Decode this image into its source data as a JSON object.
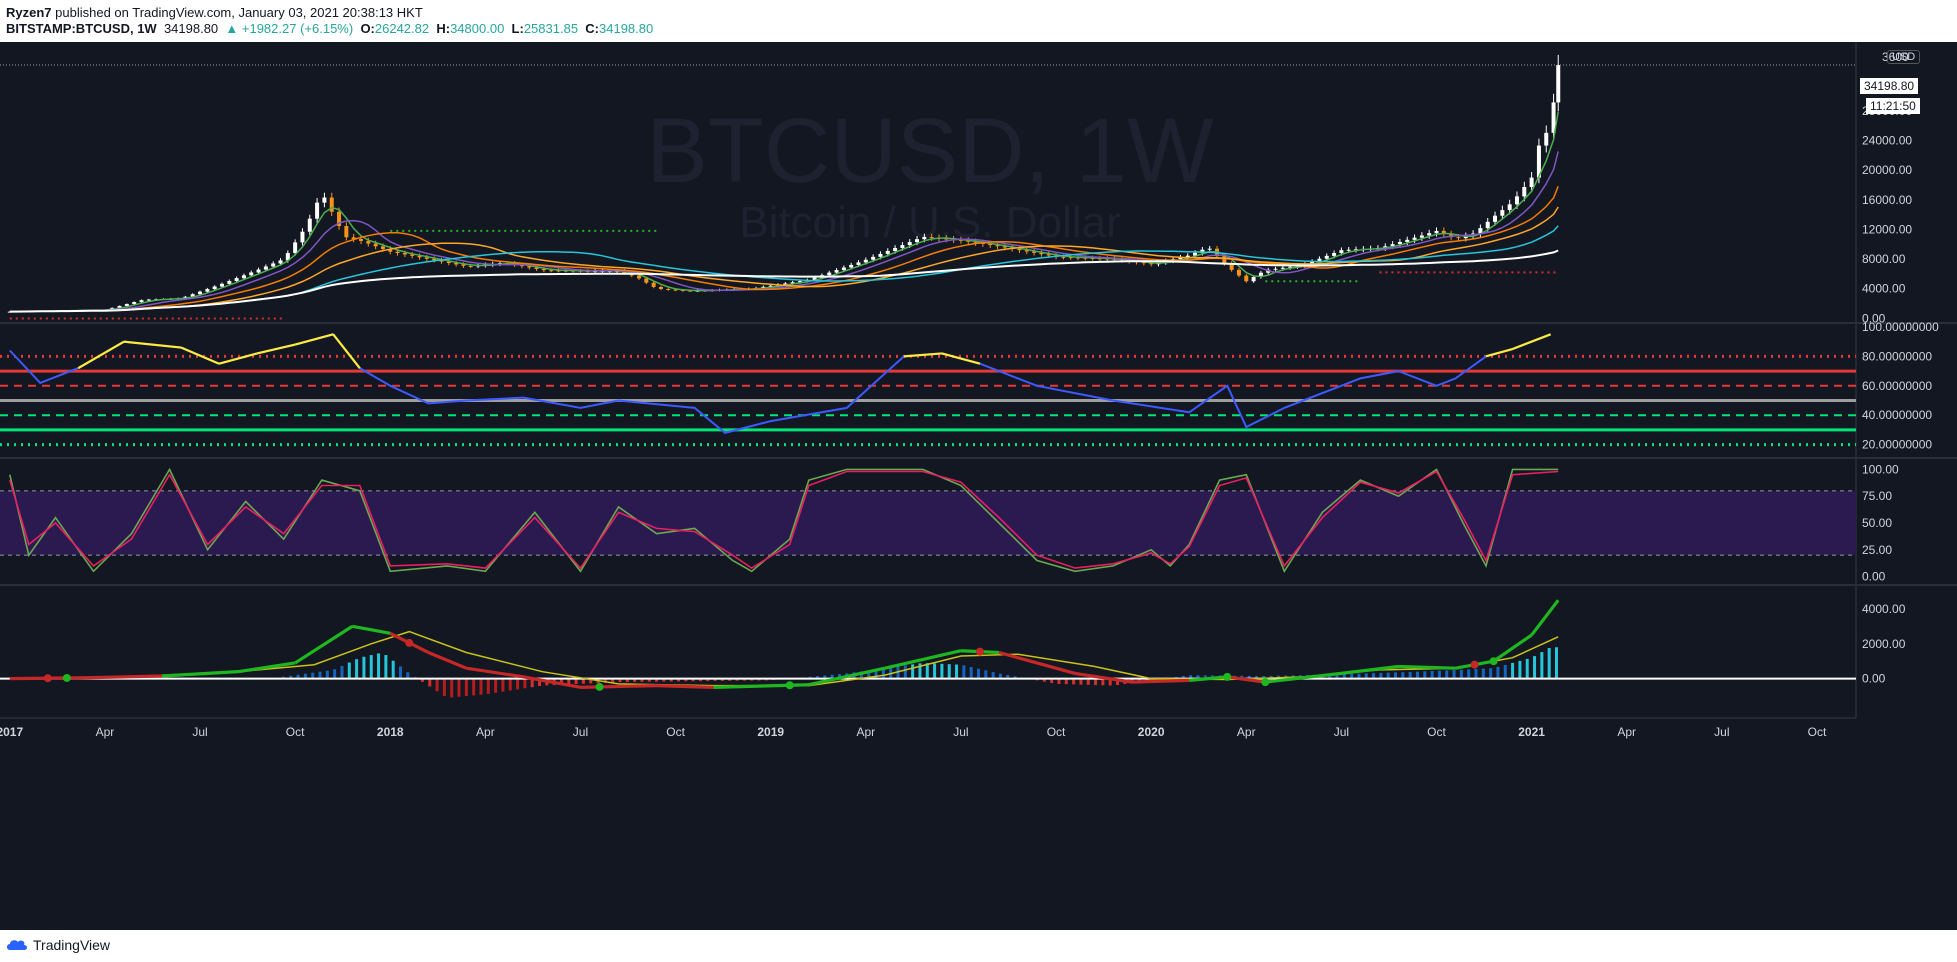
{
  "header": {
    "author": "Ryzen7",
    "published": "published on TradingView.com, January 03, 2021 20:38:13 HKT",
    "symbol": "BITSTAMP:BTCUSD, 1W",
    "last": "34198.80",
    "change": "▲ +1982.27 (+6.15%)",
    "o_label": "O:",
    "o_val": "26242.82",
    "h_label": "H:",
    "h_val": "34800.00",
    "l_label": "L:",
    "l_val": "25831.85",
    "c_label": "C:",
    "c_val": "34198.80"
  },
  "watermark": {
    "title": "BTCUSD, 1W",
    "subtitle": "Bitcoin / U.S. Dollar"
  },
  "price_scale": {
    "currency": "USD",
    "last_price": "34198.80",
    "countdown": "11:21:50"
  },
  "footer": {
    "brand": "TradingView"
  },
  "colors": {
    "background": "#131722",
    "bull": "#ffffff",
    "bear": "#f7931a",
    "rsi": "#3d5afe",
    "rsi_hot": "#ffeb3b",
    "stoch_k": "#6aa84f",
    "stoch_d": "#e91e63",
    "macd": "#1fb71f",
    "signal": "#c9c316"
  },
  "chart_data": [
    {
      "type": "line",
      "title": "BTCUSD, 1W",
      "subtitle": "Bitcoin / U.S. Dollar",
      "x_ticks": [
        "2017",
        "Apr",
        "Jul",
        "Oct",
        "2018",
        "Apr",
        "Jul",
        "Oct",
        "2019",
        "Apr",
        "Jul",
        "Oct",
        "2020",
        "Apr",
        "Jul",
        "Oct",
        "2021",
        "Apr",
        "Jul",
        "Oct"
      ],
      "y_ticks": [
        "0.00",
        "4000.00",
        "8000.00",
        "12000.00",
        "16000.00",
        "20000.00",
        "24000.00",
        "28000.00"
      ],
      "y_top_label": "3600",
      "ylim": [
        -500,
        36500
      ],
      "series": [
        {
          "name": "",
          "style": "close",
          "points": [
            [
              0,
              900
            ],
            [
              0.25,
              1150
            ],
            [
              0.35,
              2500
            ],
            [
              0.45,
              2700
            ],
            [
              0.55,
              4500
            ],
            [
              0.65,
              6500
            ],
            [
              0.72,
              8000
            ],
            [
              0.78,
              12500
            ],
            [
              0.82,
              17000
            ],
            [
              0.85,
              14000
            ],
            [
              0.88,
              11000
            ],
            [
              0.92,
              10500
            ],
            [
              1.0,
              9000
            ],
            [
              1.1,
              8000
            ],
            [
              1.2,
              7000
            ],
            [
              1.3,
              7500
            ],
            [
              1.4,
              6500
            ],
            [
              1.5,
              6400
            ],
            [
              1.6,
              6400
            ],
            [
              1.65,
              5500
            ],
            [
              1.7,
              4000
            ],
            [
              1.78,
              3700
            ],
            [
              1.85,
              3800
            ],
            [
              1.95,
              4000
            ],
            [
              2.1,
              5200
            ],
            [
              2.25,
              7900
            ],
            [
              2.4,
              11000
            ],
            [
              2.5,
              10500
            ],
            [
              2.6,
              9700
            ],
            [
              2.75,
              8300
            ],
            [
              2.9,
              8000
            ],
            [
              3.0,
              7300
            ],
            [
              3.1,
              8500
            ],
            [
              3.15,
              9600
            ],
            [
              3.2,
              7000
            ],
            [
              3.25,
              5000
            ],
            [
              3.3,
              6500
            ],
            [
              3.4,
              7200
            ],
            [
              3.5,
              9200
            ],
            [
              3.6,
              9500
            ],
            [
              3.7,
              11000
            ],
            [
              3.75,
              11800
            ],
            [
              3.8,
              10700
            ],
            [
              3.85,
              11500
            ],
            [
              3.9,
              13700
            ],
            [
              3.95,
              15700
            ],
            [
              4.0,
              19000
            ],
            [
              4.02,
              23500
            ],
            [
              4.05,
              26000
            ],
            [
              4.07,
              34198
            ]
          ]
        }
      ]
    },
    {
      "type": "line",
      "title": "",
      "y_ticks": [
        "20.00000000",
        "40.00000000",
        "60.00000000",
        "80.00000000",
        "100.00000000"
      ],
      "ylim": [
        15,
        102
      ],
      "levels": [
        20,
        30,
        40,
        50,
        60,
        70,
        80
      ],
      "series": [
        {
          "name": "",
          "points": [
            [
              0,
              84
            ],
            [
              0.08,
              62
            ],
            [
              0.18,
              72
            ],
            [
              0.3,
              90
            ],
            [
              0.45,
              86
            ],
            [
              0.55,
              75
            ],
            [
              0.65,
              82
            ],
            [
              0.75,
              88
            ],
            [
              0.85,
              95
            ],
            [
              0.92,
              72
            ],
            [
              1.0,
              60
            ],
            [
              1.1,
              48
            ],
            [
              1.2,
              50
            ],
            [
              1.35,
              52
            ],
            [
              1.5,
              45
            ],
            [
              1.6,
              50
            ],
            [
              1.8,
              45
            ],
            [
              1.88,
              28
            ],
            [
              2.0,
              36
            ],
            [
              2.2,
              45
            ],
            [
              2.35,
              80
            ],
            [
              2.45,
              82
            ],
            [
              2.55,
              75
            ],
            [
              2.7,
              60
            ],
            [
              2.9,
              50
            ],
            [
              3.1,
              42
            ],
            [
              3.2,
              60
            ],
            [
              3.25,
              32
            ],
            [
              3.35,
              45
            ],
            [
              3.45,
              55
            ],
            [
              3.55,
              65
            ],
            [
              3.65,
              70
            ],
            [
              3.75,
              60
            ],
            [
              3.8,
              65
            ],
            [
              3.88,
              80
            ],
            [
              3.95,
              85
            ],
            [
              4.05,
              95
            ]
          ]
        }
      ]
    },
    {
      "type": "line",
      "title": "",
      "y_ticks": [
        "0.00",
        "25.00",
        "50.00",
        "75.00",
        "100.00"
      ],
      "ylim": [
        -5,
        105
      ],
      "band": [
        20,
        80
      ],
      "series": [
        {
          "name": "",
          "points": [
            [
              0,
              95
            ],
            [
              0.05,
              20
            ],
            [
              0.12,
              55
            ],
            [
              0.22,
              5
            ],
            [
              0.32,
              40
            ],
            [
              0.42,
              100
            ],
            [
              0.52,
              25
            ],
            [
              0.62,
              70
            ],
            [
              0.72,
              35
            ],
            [
              0.82,
              90
            ],
            [
              0.92,
              80
            ],
            [
              1.0,
              5
            ],
            [
              1.15,
              10
            ],
            [
              1.25,
              5
            ],
            [
              1.38,
              60
            ],
            [
              1.5,
              5
            ],
            [
              1.6,
              65
            ],
            [
              1.7,
              40
            ],
            [
              1.8,
              45
            ],
            [
              1.9,
              15
            ],
            [
              1.95,
              5
            ],
            [
              2.05,
              35
            ],
            [
              2.1,
              90
            ],
            [
              2.2,
              100
            ],
            [
              2.4,
              100
            ],
            [
              2.5,
              85
            ],
            [
              2.6,
              50
            ],
            [
              2.7,
              15
            ],
            [
              2.8,
              5
            ],
            [
              2.9,
              10
            ],
            [
              3.0,
              25
            ],
            [
              3.05,
              10
            ],
            [
              3.1,
              30
            ],
            [
              3.18,
              90
            ],
            [
              3.25,
              95
            ],
            [
              3.35,
              5
            ],
            [
              3.45,
              60
            ],
            [
              3.55,
              90
            ],
            [
              3.65,
              75
            ],
            [
              3.75,
              100
            ],
            [
              3.82,
              50
            ],
            [
              3.88,
              10
            ],
            [
              3.95,
              100
            ],
            [
              4.07,
              100
            ]
          ]
        },
        {
          "name": "",
          "points": [
            [
              0,
              90
            ],
            [
              0.05,
              30
            ],
            [
              0.12,
              50
            ],
            [
              0.22,
              10
            ],
            [
              0.32,
              35
            ],
            [
              0.42,
              95
            ],
            [
              0.52,
              30
            ],
            [
              0.62,
              65
            ],
            [
              0.72,
              40
            ],
            [
              0.82,
              85
            ],
            [
              0.92,
              85
            ],
            [
              1.0,
              10
            ],
            [
              1.15,
              12
            ],
            [
              1.25,
              8
            ],
            [
              1.38,
              55
            ],
            [
              1.5,
              8
            ],
            [
              1.6,
              60
            ],
            [
              1.7,
              45
            ],
            [
              1.8,
              42
            ],
            [
              1.9,
              20
            ],
            [
              1.95,
              8
            ],
            [
              2.05,
              30
            ],
            [
              2.1,
              85
            ],
            [
              2.2,
              98
            ],
            [
              2.4,
              98
            ],
            [
              2.5,
              88
            ],
            [
              2.6,
              55
            ],
            [
              2.7,
              20
            ],
            [
              2.8,
              8
            ],
            [
              2.9,
              12
            ],
            [
              3.0,
              22
            ],
            [
              3.05,
              12
            ],
            [
              3.1,
              28
            ],
            [
              3.18,
              85
            ],
            [
              3.25,
              92
            ],
            [
              3.35,
              10
            ],
            [
              3.45,
              55
            ],
            [
              3.55,
              88
            ],
            [
              3.65,
              78
            ],
            [
              3.75,
              98
            ],
            [
              3.82,
              55
            ],
            [
              3.88,
              15
            ],
            [
              3.95,
              95
            ],
            [
              4.07,
              98
            ]
          ]
        }
      ]
    },
    {
      "type": "line",
      "title": "",
      "y_ticks": [
        "0.00",
        "2000.00",
        "4000.00"
      ],
      "ylim": [
        -1800,
        5200
      ],
      "series": [
        {
          "name": "",
          "points": [
            [
              0,
              0
            ],
            [
              0.2,
              50
            ],
            [
              0.4,
              150
            ],
            [
              0.6,
              400
            ],
            [
              0.75,
              900
            ],
            [
              0.9,
              3000
            ],
            [
              1.0,
              2600
            ],
            [
              1.1,
              1500
            ],
            [
              1.2,
              600
            ],
            [
              1.35,
              100
            ],
            [
              1.5,
              -500
            ],
            [
              1.7,
              -400
            ],
            [
              1.85,
              -500
            ],
            [
              2.1,
              -350
            ],
            [
              2.3,
              600
            ],
            [
              2.5,
              1600
            ],
            [
              2.6,
              1500
            ],
            [
              2.8,
              300
            ],
            [
              2.95,
              -200
            ],
            [
              3.1,
              -100
            ],
            [
              3.2,
              100
            ],
            [
              3.3,
              -200
            ],
            [
              3.5,
              300
            ],
            [
              3.65,
              700
            ],
            [
              3.8,
              600
            ],
            [
              3.9,
              1000
            ],
            [
              4.0,
              2500
            ],
            [
              4.07,
              4500
            ]
          ]
        },
        {
          "name": "",
          "points": [
            [
              0,
              0
            ],
            [
              0.3,
              100
            ],
            [
              0.6,
              400
            ],
            [
              0.8,
              800
            ],
            [
              0.95,
              2000
            ],
            [
              1.05,
              2700
            ],
            [
              1.2,
              1500
            ],
            [
              1.4,
              400
            ],
            [
              1.6,
              -300
            ],
            [
              1.85,
              -400
            ],
            [
              2.1,
              -400
            ],
            [
              2.3,
              200
            ],
            [
              2.5,
              1300
            ],
            [
              2.65,
              1400
            ],
            [
              2.85,
              700
            ],
            [
              3.0,
              0
            ],
            [
              3.2,
              -50
            ],
            [
              3.4,
              100
            ],
            [
              3.6,
              500
            ],
            [
              3.8,
              600
            ],
            [
              3.95,
              1200
            ],
            [
              4.07,
              2400
            ]
          ]
        }
      ],
      "histogram": [
        [
          0.75,
          200
        ],
        [
          0.85,
          500
        ],
        [
          0.92,
          1200
        ],
        [
          0.98,
          1500
        ],
        [
          1.05,
          300
        ],
        [
          1.15,
          -1100
        ],
        [
          1.25,
          -900
        ],
        [
          1.4,
          -400
        ],
        [
          1.6,
          -200
        ],
        [
          2.0,
          -100
        ],
        [
          2.2,
          300
        ],
        [
          2.4,
          900
        ],
        [
          2.5,
          800
        ],
        [
          2.6,
          300
        ],
        [
          2.75,
          -300
        ],
        [
          2.9,
          -400
        ],
        [
          3.1,
          200
        ],
        [
          3.3,
          150
        ],
        [
          3.5,
          250
        ],
        [
          3.7,
          400
        ],
        [
          3.9,
          600
        ],
        [
          4.0,
          1200
        ],
        [
          4.05,
          1800
        ]
      ]
    }
  ]
}
